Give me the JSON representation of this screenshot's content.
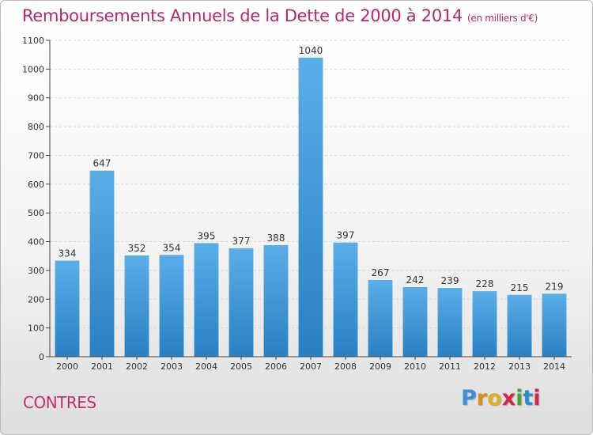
{
  "title": "Remboursements Annuels de la Dette de 2000 à 2014",
  "unit": "(en milliers d'€)",
  "place": "CONTRES",
  "logo": [
    "P",
    "r",
    "o",
    "x",
    "i",
    "t",
    "i"
  ],
  "colors": {
    "bar_light": "#5aaee8",
    "bar_dark": "#2a7fc4",
    "title": "#b5286b",
    "logo": [
      "#3a8fd6",
      "#e08a1e",
      "#e0b020",
      "#d0284a",
      "#4aa040",
      "#2a8ad0",
      "#d0284a"
    ]
  },
  "chart_data": {
    "type": "bar",
    "categories": [
      "2000",
      "2001",
      "2002",
      "2003",
      "2004",
      "2005",
      "2006",
      "2007",
      "2008",
      "2009",
      "2010",
      "2011",
      "2012",
      "2013",
      "2014"
    ],
    "values": [
      334,
      647,
      352,
      354,
      395,
      377,
      388,
      1040,
      397,
      267,
      242,
      239,
      228,
      215,
      219
    ],
    "ylim": [
      0,
      1100
    ],
    "yticks": [
      0,
      100,
      200,
      300,
      400,
      500,
      600,
      700,
      800,
      900,
      1000,
      1100
    ],
    "grid": true,
    "data_labels": true
  }
}
